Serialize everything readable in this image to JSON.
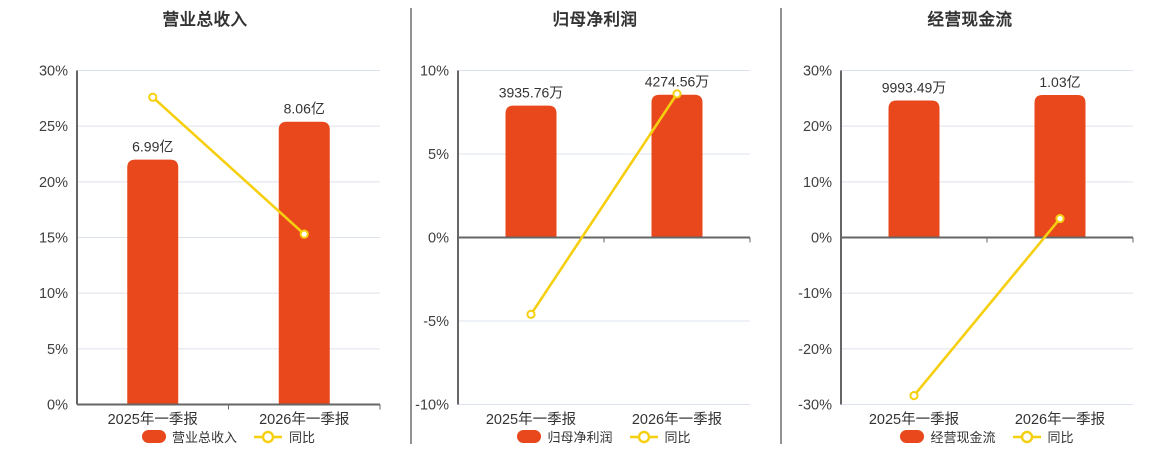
{
  "colors": {
    "bar": "#e8481b",
    "line": "#f6cf11",
    "marker_fill": "#ffffff",
    "grid": "#dde3ee",
    "axis": "#666666",
    "tick_text": "#3f3f3f",
    "label_text": "#333333",
    "divider": "#929292",
    "background": "#ffffff"
  },
  "chart_data": [
    {
      "type": "bar",
      "title": "营业总收入",
      "categories": [
        "2025年一季报",
        "2026年一季报"
      ],
      "bar_series": {
        "name": "营业总收入",
        "labels": [
          "6.99亿",
          "8.06亿"
        ],
        "axis_pct": [
          22.0,
          25.4
        ]
      },
      "line_series": {
        "name": "同比",
        "values_pct": [
          27.6,
          15.3
        ]
      },
      "y_axis": {
        "min": 0,
        "max": 30,
        "step": 5,
        "unit": "%",
        "ticks": [
          "30%",
          "25%",
          "20%",
          "15%",
          "10%",
          "5%",
          "0%"
        ]
      },
      "legend": {
        "bar_label": "营业总收入",
        "line_label": "同比"
      }
    },
    {
      "type": "bar",
      "title": "归母净利润",
      "categories": [
        "2025年一季报",
        "2026年一季报"
      ],
      "bar_series": {
        "name": "归母净利润",
        "labels": [
          "3935.76万",
          "4274.56万"
        ],
        "axis_pct": [
          7.9,
          8.55
        ]
      },
      "line_series": {
        "name": "同比",
        "values_pct": [
          -4.6,
          8.6
        ]
      },
      "y_axis": {
        "min": -10,
        "max": 10,
        "step": 5,
        "unit": "%",
        "ticks": [
          "10%",
          "5%",
          "0%",
          "-5%",
          "-10%"
        ]
      },
      "legend": {
        "bar_label": "归母净利润",
        "line_label": "同比"
      }
    },
    {
      "type": "bar",
      "title": "经营现金流",
      "categories": [
        "2025年一季报",
        "2026年一季报"
      ],
      "bar_series": {
        "name": "经营现金流",
        "labels": [
          "9993.49万",
          "1.03亿"
        ],
        "axis_pct": [
          24.6,
          25.6
        ]
      },
      "line_series": {
        "name": "同比",
        "values_pct": [
          -28.4,
          3.4
        ]
      },
      "y_axis": {
        "min": -30,
        "max": 30,
        "step": 10,
        "unit": "%",
        "ticks": [
          "30%",
          "20%",
          "10%",
          "0%",
          "-10%",
          "-20%",
          "-30%"
        ]
      },
      "legend": {
        "bar_label": "经营现金流",
        "line_label": "同比"
      }
    }
  ]
}
